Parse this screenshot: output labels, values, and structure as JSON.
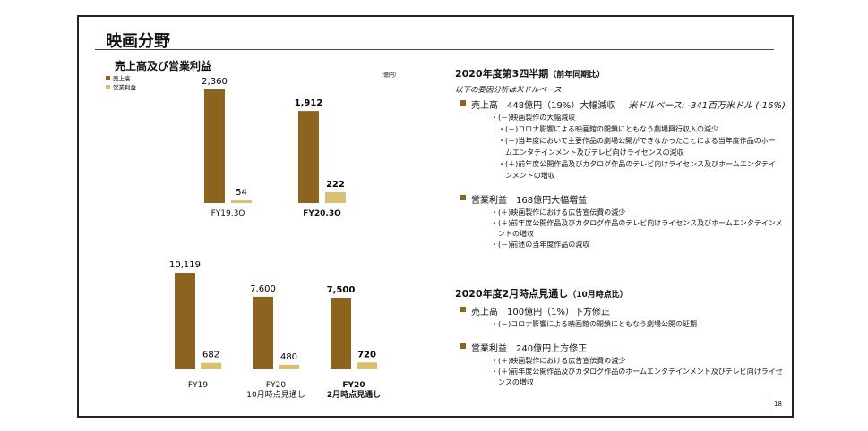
{
  "title": "映画分野",
  "chart_heading": "売上高及び営業利益",
  "unit": "（億円）",
  "chart_data": [
    {
      "type": "bar",
      "categories": [
        "FY19.3Q",
        "FY20.3Q"
      ],
      "emphasis": [
        false,
        true
      ],
      "series": [
        {
          "name": "売上高",
          "color": "#8c6420",
          "values": [
            2360,
            1912
          ],
          "value_labels": [
            "2,360",
            "1,912"
          ]
        },
        {
          "name": "営業利益",
          "color": "#d9bf72",
          "values": [
            54,
            222
          ]
        }
      ]
    },
    {
      "type": "bar",
      "categories": [
        "FY19",
        "FY20\n10月時点見通し",
        "FY20\n2月時点見通し"
      ],
      "emphasis": [
        false,
        false,
        true
      ],
      "series": [
        {
          "color": "#8c6420",
          "values": [
            10119,
            7600,
            7500
          ],
          "value_labels": [
            "10,119",
            "7,600",
            "7,500"
          ]
        },
        {
          "color": "#d9bf72",
          "values": [
            682,
            480,
            720
          ]
        }
      ]
    }
  ],
  "sections": [
    {
      "heading": "2020年度第3四半期",
      "heading_note": "（前年同期比）",
      "note": "以下の要因分析は米ドルベース",
      "items": [
        {
          "label": "売上高　448億円（19%）大幅減収",
          "extra": "米ドルベース: -341百万米ドル (-16%)",
          "subs": [
            {
              "text": "・(－)映画製作の大幅減収",
              "children": [
                "・(－)コロナ影響による映画館の閉鎖にともなう劇場興行収入の減少",
                "・(－)当年度において主要作品の劇場公開ができなかったことによる当年度作品のホームエンタテインメント及びテレビ向けライセンスの減収",
                "・(＋)前年度公開作品及びカタログ作品のテレビ向けライセンス及びホームエンタテインメントの増収"
              ]
            }
          ]
        },
        {
          "label": "営業利益　168億円大幅増益",
          "subs": [
            {
              "text": "・(＋)映画製作における広告宣伝費の減少"
            },
            {
              "text": "・(＋)前年度公開作品及びカタログ作品のテレビ向けライセンス及びホームエンタテインメントの増収"
            },
            {
              "text": "・(－)前述の当年度作品の減収"
            }
          ]
        }
      ]
    },
    {
      "heading": "2020年度2月時点見通し",
      "heading_note": "（10月時点比）",
      "items": [
        {
          "label": "売上高　100億円（1%）下方修正",
          "subs": [
            {
              "text": "・(－)コロナ影響による映画館の閉鎖にともなう劇場公開の延期"
            }
          ]
        },
        {
          "label": "営業利益　240億円上方修正",
          "subs": [
            {
              "text": "・(＋)映画製作における広告宣伝費の減少"
            },
            {
              "text": "・(＋)前年度公開作品及びカタログ作品のホームエンタテインメント及びテレビ向けライセンスの増収"
            }
          ]
        }
      ]
    }
  ],
  "page_number": "18"
}
